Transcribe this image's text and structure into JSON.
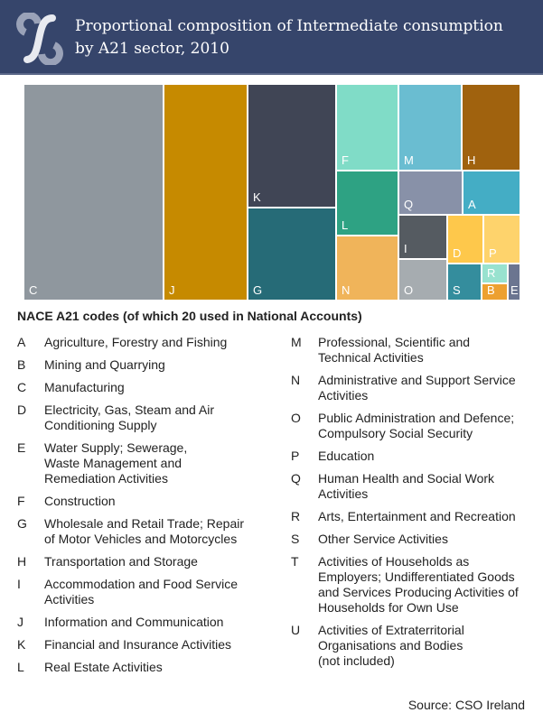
{
  "header": {
    "title": "Proportional composition of Intermediate consumption\nby A21 sector, 2010",
    "logo_icon": "cso-logo-icon"
  },
  "chart_data": {
    "type": "treemap",
    "title": "Proportional composition of Intermediate consumption by A21 sector, 2010",
    "nodes": [
      {
        "code": "C",
        "value": 28.1,
        "color": "#8f979e"
      },
      {
        "code": "J",
        "value": 16.8,
        "color": "#c68a00"
      },
      {
        "code": "K",
        "value": 10.1,
        "color": "#404555"
      },
      {
        "code": "G",
        "value": 7.5,
        "color": "#266b77"
      },
      {
        "code": "F",
        "value": 4.9,
        "color": "#80dcc7"
      },
      {
        "code": "M",
        "value": 5.0,
        "color": "#6abdd1"
      },
      {
        "code": "H",
        "value": 4.6,
        "color": "#a0620e"
      },
      {
        "code": "L",
        "value": 3.7,
        "color": "#2ea283"
      },
      {
        "code": "N",
        "value": 3.7,
        "color": "#f0b45a"
      },
      {
        "code": "Q",
        "value": 2.6,
        "color": "#8891a8"
      },
      {
        "code": "A",
        "value": 2.3,
        "color": "#44adc5"
      },
      {
        "code": "I",
        "value": 1.9,
        "color": "#555b61"
      },
      {
        "code": "O",
        "value": 1.8,
        "color": "#a6acb0"
      },
      {
        "code": "D",
        "value": 1.6,
        "color": "#fec84b"
      },
      {
        "code": "P",
        "value": 1.6,
        "color": "#fed36c"
      },
      {
        "code": "S",
        "value": 1.1,
        "color": "#348d9d"
      },
      {
        "code": "R",
        "value": 0.4,
        "color": "#98e2cf"
      },
      {
        "code": "B",
        "value": 0.4,
        "color": "#eda030"
      },
      {
        "code": "E",
        "value": 0.4,
        "color": "#6b7590"
      }
    ]
  },
  "legend": {
    "title": "NACE A21 codes (of which 20 used in National Accounts)",
    "left": [
      {
        "code": "A",
        "name": "Agriculture, Forestry and Fishing"
      },
      {
        "code": "B",
        "name": "Mining and Quarrying"
      },
      {
        "code": "C",
        "name": "Manufacturing"
      },
      {
        "code": "D",
        "name": "Electricity, Gas, Steam and Air\nConditioning Supply"
      },
      {
        "code": "E",
        "name": "Water Supply; Sewerage,\nWaste Management and\nRemediation Activities"
      },
      {
        "code": "F",
        "name": "Construction"
      },
      {
        "code": "G",
        "name": "Wholesale and Retail Trade; Repair\nof Motor Vehicles and Motorcycles"
      },
      {
        "code": "H",
        "name": "Transportation and Storage"
      },
      {
        "code": "I",
        "name": "Accommodation and Food Service\nActivities"
      },
      {
        "code": "J",
        "name": "Information and Communication"
      },
      {
        "code": "K",
        "name": "Financial and Insurance Activities"
      },
      {
        "code": "L",
        "name": "Real Estate Activities"
      }
    ],
    "right": [
      {
        "code": "M",
        "name": "Professional, Scientific and\nTechnical Activities"
      },
      {
        "code": "N",
        "name": "Administrative and Support Service\nActivities"
      },
      {
        "code": "O",
        "name": "Public Administration and Defence;\nCompulsory Social Security"
      },
      {
        "code": "P",
        "name": "Education"
      },
      {
        "code": "Q",
        "name": "Human Health and Social Work\nActivities"
      },
      {
        "code": "R",
        "name": "Arts, Entertainment and Recreation"
      },
      {
        "code": "S",
        "name": "Other Service Activities"
      },
      {
        "code": "T",
        "name": "Activities of Households as\nEmployers; Undifferentiated Goods\nand Services Producing Activities of\nHouseholds for Own Use"
      },
      {
        "code": "U",
        "name": "Activities of Extraterritorial\nOrganisations and Bodies\n(not included)"
      }
    ]
  },
  "source": "Source:  CSO Ireland"
}
